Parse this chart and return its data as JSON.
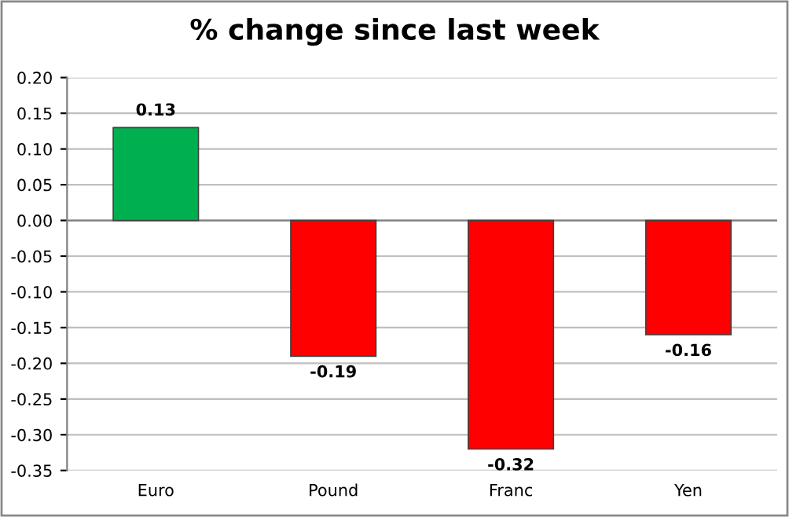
{
  "chart_data": {
    "type": "bar",
    "title": "% change since last week",
    "categories": [
      "Euro",
      "Pound",
      "Franc",
      "Yen"
    ],
    "values": [
      0.13,
      -0.19,
      -0.32,
      -0.16
    ],
    "colors": [
      "#00b050",
      "#ff0000",
      "#ff0000",
      "#ff0000"
    ],
    "ylim": [
      -0.35,
      0.2
    ],
    "yticks": [
      {
        "value": 0.2,
        "label": "0.20"
      },
      {
        "value": 0.15,
        "label": "0.15"
      },
      {
        "value": 0.1,
        "label": "0.10"
      },
      {
        "value": 0.05,
        "label": "0.05"
      },
      {
        "value": 0,
        "label": "0.00"
      },
      {
        "value": -0.05,
        "label": "-0.05"
      },
      {
        "value": -0.1,
        "label": "-0.10"
      },
      {
        "value": -0.15,
        "label": "-0.15"
      },
      {
        "value": -0.2,
        "label": "-0.20"
      },
      {
        "value": -0.25,
        "label": "-0.25"
      },
      {
        "value": -0.3,
        "label": "-0.30"
      },
      {
        "value": -0.35,
        "label": "-0.35"
      }
    ],
    "grid": "y",
    "data_labels": true
  }
}
